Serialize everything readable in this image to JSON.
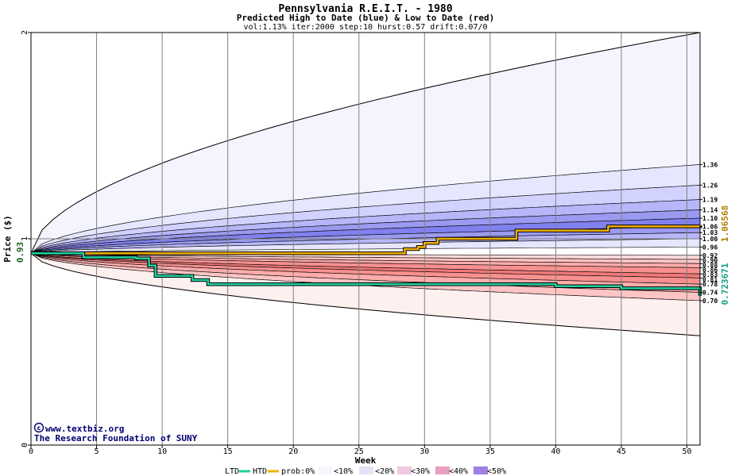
{
  "chart_data": {
    "type": "line",
    "title": "Pennsylvania R.E.I.T. - 1980",
    "subtitle": "Predicted High to Date (blue) &  Low to Date (red)",
    "params": "vol:1.13% iter:2000 step:10 hurst:0.57 drift:0.07/0",
    "xlabel": "Week",
    "ylabel": "Price ($)",
    "xlim": [
      0,
      51
    ],
    "ylim": [
      0,
      2
    ],
    "x_ticks": [
      "0",
      "5",
      "10",
      "15",
      "20",
      "25",
      "30",
      "35",
      "40",
      "45",
      "50"
    ],
    "y_ticks": [
      "0",
      "1",
      "2"
    ],
    "grid": true,
    "start_price": 0.93,
    "start_price_label": "0.93",
    "htd_end_label": "1.06568",
    "ltd_end_label": "0.723671",
    "right_labels": [
      "1.36",
      "1.26",
      "1.19",
      "1.14",
      "1.10",
      "1.06",
      "1.03",
      "1.00",
      "0.96",
      "0.92",
      "0.90",
      "0.88",
      "0.86",
      "0.83",
      "0.81",
      "0.78",
      "0.74",
      "0.70"
    ],
    "upper_envelope_end": 2.0,
    "lower_envelope_end": 0.53,
    "htd_series": {
      "name": "HTD",
      "x": [
        0,
        27.5,
        28.5,
        29.5,
        30,
        31,
        35,
        36.5,
        37,
        43,
        44,
        51
      ],
      "y": [
        0.93,
        0.93,
        0.95,
        0.96,
        0.98,
        1.0,
        1.0,
        1.0,
        1.04,
        1.04,
        1.06,
        1.066
      ]
    },
    "ltd_series": {
      "name": "LTD",
      "x": [
        0,
        4,
        6,
        8,
        9,
        9.5,
        10,
        12,
        12.3,
        13.2,
        13.5,
        20,
        30,
        40,
        45,
        51
      ],
      "y": [
        0.93,
        0.91,
        0.91,
        0.905,
        0.87,
        0.82,
        0.82,
        0.82,
        0.8,
        0.8,
        0.78,
        0.78,
        0.78,
        0.77,
        0.76,
        0.724
      ]
    },
    "legend": {
      "ltd": "LTD",
      "htd": "HTD",
      "prob": "prob:0%",
      "bins": [
        "<10%",
        "<20%",
        "<30%",
        "<40%",
        "<50%"
      ]
    },
    "credit_line1": "www.textbiz.org",
    "credit_line2": "The Research Foundation of SUNY",
    "colors": {
      "htd": "#f0b000",
      "ltd": "#20d0a0",
      "blue_bands": [
        "#f4f4ff",
        "#e6e6ff",
        "#d2d2ff",
        "#b6b6f8",
        "#9a9af0",
        "#8080ee"
      ],
      "red_bands": [
        "#fff0f0",
        "#ffdada",
        "#ffc4c4",
        "#ffacac",
        "#f89090",
        "#f07878"
      ]
    }
  }
}
